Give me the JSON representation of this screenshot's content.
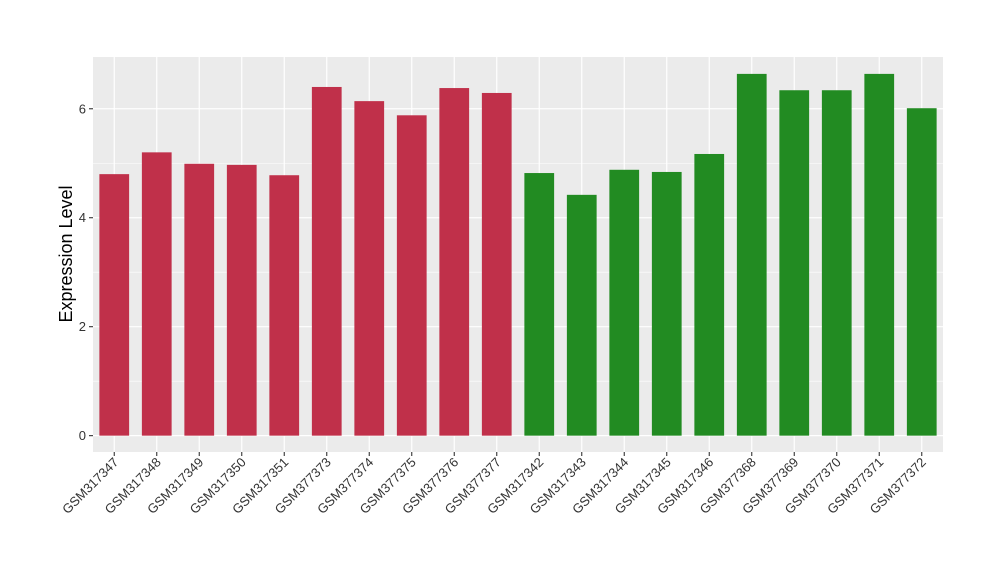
{
  "chart_data": {
    "type": "bar",
    "title": "",
    "xlabel": "",
    "ylabel": "Expression Level",
    "ylim": [
      -0.3,
      6.95
    ],
    "yticks": [
      0,
      2,
      4,
      6
    ],
    "ytick_labels": [
      "0",
      "2",
      "4",
      "6"
    ],
    "grid": true,
    "legend": "none",
    "categories": [
      "GSM317347",
      "GSM317348",
      "GSM317349",
      "GSM317350",
      "GSM317351",
      "GSM377373",
      "GSM377374",
      "GSM377375",
      "GSM377376",
      "GSM377377",
      "GSM317342",
      "GSM317343",
      "GSM317344",
      "GSM317345",
      "GSM317346",
      "GSM377368",
      "GSM377369",
      "GSM377370",
      "GSM377371",
      "GSM377372"
    ],
    "values": [
      4.8,
      5.2,
      4.99,
      4.97,
      4.78,
      6.4,
      6.14,
      5.88,
      6.38,
      6.29,
      4.82,
      4.42,
      4.88,
      4.84,
      5.17,
      6.64,
      6.34,
      6.34,
      6.64,
      6.01
    ],
    "bar_colors": [
      "#C0304A",
      "#C0304A",
      "#C0304A",
      "#C0304A",
      "#C0304A",
      "#C0304A",
      "#C0304A",
      "#C0304A",
      "#C0304A",
      "#C0304A",
      "#228B22",
      "#228B22",
      "#228B22",
      "#228B22",
      "#228B22",
      "#228B22",
      "#228B22",
      "#228B22",
      "#228B22",
      "#228B22"
    ],
    "colors": {
      "panel_background": "#EBEBEB",
      "gridline": "#FFFFFF",
      "group_a": "#C0304A",
      "group_b": "#228B22"
    }
  }
}
